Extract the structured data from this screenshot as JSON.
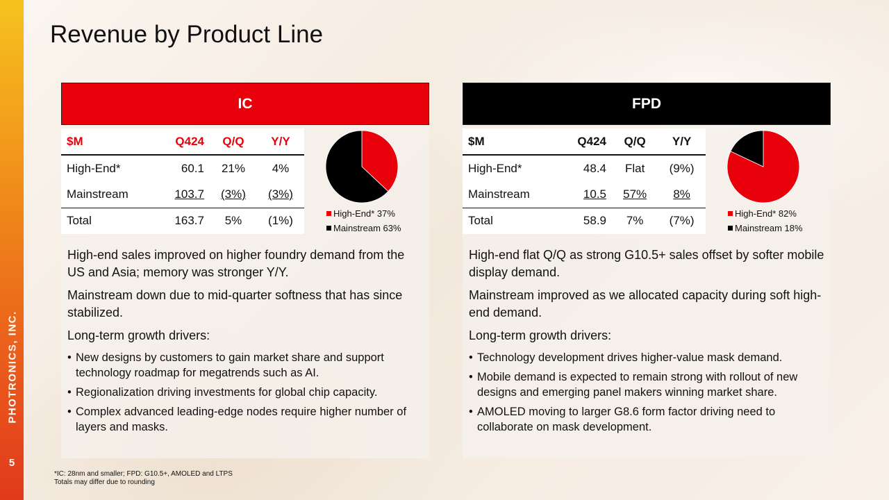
{
  "slide": {
    "title": "Revenue by Product Line",
    "company": "PHOTRONICS, INC.",
    "page_number": "5",
    "footnote_lines": [
      "*IC: 28nm and smaller; FPD: G10.5+, AMOLED and LTPS",
      "Totals may differ due to rounding"
    ]
  },
  "colors": {
    "red": "#e8000b",
    "black": "#000000",
    "sidebar_top": "#f6c21e",
    "sidebar_bottom": "#e03a1c"
  },
  "ic": {
    "header": "IC",
    "columns": [
      "$M",
      "Q424",
      "Q/Q",
      "Y/Y"
    ],
    "rows": [
      [
        "High-End*",
        "60.1",
        "21%",
        "4%"
      ],
      [
        "Mainstream",
        "103.7",
        "(3%)",
        "(3%)"
      ],
      [
        "Total",
        "163.7",
        "5%",
        "(1%)"
      ]
    ],
    "legend": [
      "High-End* 37%",
      "Mainstream 63%"
    ],
    "paragraphs": [
      "High-end sales improved on higher foundry demand from the US and Asia; memory was stronger Y/Y.",
      "Mainstream down due to mid-quarter softness that has since stabilized.",
      "Long-term growth drivers:"
    ],
    "bullets": [
      "New designs by customers to gain market share and support technology roadmap for megatrends such as AI.",
      "Regionalization driving investments for global chip capacity.",
      "Complex advanced leading-edge nodes require higher number of layers and masks."
    ]
  },
  "fpd": {
    "header": "FPD",
    "columns": [
      "$M",
      "Q424",
      "Q/Q",
      "Y/Y"
    ],
    "rows": [
      [
        "High-End*",
        "48.4",
        "Flat",
        "(9%)"
      ],
      [
        "Mainstream",
        "10.5",
        "57%",
        "8%"
      ],
      [
        "Total",
        "58.9",
        "7%",
        "(7%)"
      ]
    ],
    "legend": [
      "High-End* 82%",
      "Mainstream 18%"
    ],
    "paragraphs": [
      "High-end flat Q/Q as strong G10.5+ sales offset by softer mobile display demand.",
      "Mainstream improved as we allocated capacity during soft high-end demand.",
      "Long-term growth drivers:"
    ],
    "bullets": [
      "Technology development drives higher-value mask demand.",
      "Mobile demand is expected to remain strong with rollout of new designs and emerging panel makers winning market share.",
      "AMOLED moving to larger G8.6 form factor driving need to collaborate on mask development."
    ]
  },
  "chart_data": [
    {
      "type": "pie",
      "categories": [
        "High-End*",
        "Mainstream"
      ],
      "values": [
        37,
        63
      ],
      "colors": [
        "#e8000b",
        "#000000"
      ]
    },
    {
      "type": "pie",
      "categories": [
        "High-End*",
        "Mainstream"
      ],
      "values": [
        82,
        18
      ],
      "colors": [
        "#e8000b",
        "#000000"
      ]
    }
  ]
}
